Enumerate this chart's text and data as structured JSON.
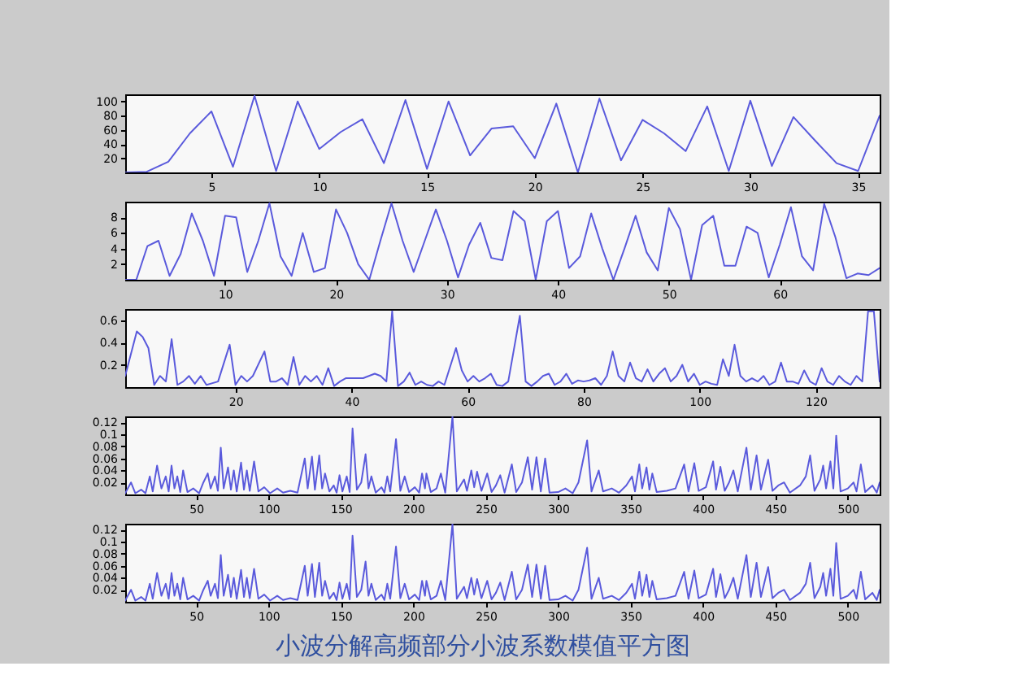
{
  "chart_data": [
    {
      "type": "line",
      "color": "#5a5adc",
      "xlim": [
        1,
        36
      ],
      "ylim": [
        0,
        110
      ],
      "xticks": [
        5,
        10,
        15,
        20,
        25,
        30,
        35
      ],
      "yticks": [
        20,
        40,
        60,
        80,
        100
      ],
      "x": [
        1,
        2,
        3,
        4,
        5,
        6,
        7,
        8,
        9,
        10,
        11,
        12,
        13,
        14,
        15,
        16,
        17,
        18,
        19,
        20,
        21,
        22,
        23,
        24,
        25,
        26,
        27,
        28,
        29,
        30,
        31,
        32,
        33,
        34,
        35,
        36
      ],
      "values": [
        0,
        1,
        15,
        55,
        86,
        8,
        108,
        2,
        100,
        33,
        57,
        75,
        13,
        102,
        5,
        100,
        24,
        62,
        65,
        20,
        97,
        0,
        104,
        17,
        74,
        55,
        30,
        93,
        2,
        101,
        9,
        78,
        45,
        13,
        2,
        80
      ]
    },
    {
      "type": "line",
      "color": "#5a5adc",
      "xlim": [
        1,
        69
      ],
      "ylim": [
        0,
        10
      ],
      "xticks": [
        10,
        20,
        30,
        40,
        50,
        60
      ],
      "yticks": [
        2,
        4,
        6,
        8
      ],
      "x": [
        1,
        2,
        3,
        4,
        5,
        6,
        7,
        8,
        9,
        10,
        11,
        12,
        13,
        14,
        15,
        16,
        17,
        18,
        19,
        20,
        21,
        22,
        23,
        24,
        25,
        26,
        27,
        28,
        29,
        30,
        31,
        32,
        33,
        34,
        35,
        36,
        37,
        38,
        39,
        40,
        41,
        42,
        43,
        44,
        45,
        46,
        47,
        48,
        49,
        50,
        51,
        52,
        53,
        54,
        55,
        56,
        57,
        58,
        59,
        60,
        61,
        62,
        63,
        64,
        65,
        66,
        67,
        68,
        69
      ],
      "values": [
        0,
        0,
        4.3,
        5,
        0.5,
        3.3,
        8.5,
        5,
        0.5,
        8.2,
        8,
        1,
        5,
        9.8,
        3,
        0.5,
        6,
        1,
        1.5,
        9,
        6,
        2,
        0,
        5,
        9.8,
        5,
        1,
        5,
        9,
        5,
        0.3,
        4.5,
        7.3,
        2.8,
        2.5,
        8.8,
        7.5,
        0,
        7.5,
        8.8,
        1.5,
        3,
        8.5,
        4,
        0,
        4,
        8.2,
        3.5,
        1.2,
        9.2,
        6.5,
        0,
        7,
        8.2,
        1.8,
        1.8,
        6.8,
        6,
        0.3,
        4.5,
        9.3,
        3,
        1.2,
        9.7,
        5.5,
        0.2,
        0.8,
        0.6,
        1.5
      ]
    },
    {
      "type": "line",
      "color": "#5a5adc",
      "xlim": [
        1,
        131
      ],
      "ylim": [
        0,
        0.7
      ],
      "xticks": [
        20,
        40,
        60,
        80,
        100,
        120
      ],
      "yticks": [
        0.2,
        0.4,
        0.6
      ],
      "x": [
        1,
        3,
        4,
        5,
        6,
        7,
        8,
        9,
        10,
        11,
        12,
        13,
        14,
        15,
        17,
        19,
        20,
        21,
        22,
        23,
        25,
        26,
        27,
        28,
        29,
        30,
        31,
        32,
        33,
        34,
        35,
        36,
        37,
        38,
        39,
        42,
        43,
        44,
        45,
        46,
        47,
        48,
        49,
        50,
        51,
        52,
        53,
        54,
        55,
        56,
        58,
        59,
        60,
        61,
        62,
        63,
        64,
        65,
        66,
        67,
        69,
        70,
        71,
        72,
        73,
        74,
        75,
        76,
        77,
        78,
        79,
        80,
        81,
        82,
        83,
        84,
        85,
        86,
        87,
        88,
        89,
        90,
        91,
        92,
        93,
        94,
        95,
        96,
        97,
        98,
        99,
        100,
        101,
        102,
        103,
        104,
        105,
        106,
        107,
        108,
        109,
        110,
        111,
        112,
        113,
        114,
        115,
        116,
        117,
        118,
        119,
        120,
        121,
        122,
        123,
        124,
        125,
        126,
        127,
        128,
        129,
        130,
        131
      ],
      "values": [
        0.1,
        0.5,
        0.45,
        0.35,
        0.02,
        0.1,
        0.05,
        0.43,
        0.02,
        0.05,
        0.1,
        0.03,
        0.1,
        0.02,
        0.05,
        0.38,
        0.02,
        0.1,
        0.05,
        0.1,
        0.32,
        0.05,
        0.05,
        0.08,
        0.02,
        0.27,
        0.02,
        0.1,
        0.05,
        0.1,
        0.02,
        0.17,
        0.01,
        0.05,
        0.08,
        0.08,
        0.1,
        0.12,
        0.1,
        0.05,
        0.68,
        0.01,
        0.05,
        0.13,
        0.02,
        0.05,
        0.02,
        0.01,
        0.05,
        0.02,
        0.35,
        0.15,
        0.05,
        0.1,
        0.05,
        0.08,
        0.12,
        0.02,
        0.01,
        0.05,
        0.64,
        0.05,
        0.01,
        0.05,
        0.1,
        0.12,
        0.02,
        0.05,
        0.12,
        0.03,
        0.06,
        0.05,
        0.06,
        0.08,
        0.02,
        0.1,
        0.32,
        0.1,
        0.05,
        0.22,
        0.08,
        0.05,
        0.16,
        0.05,
        0.12,
        0.17,
        0.05,
        0.1,
        0.2,
        0.05,
        0.12,
        0.02,
        0.05,
        0.03,
        0.02,
        0.25,
        0.1,
        0.38,
        0.1,
        0.05,
        0.08,
        0.05,
        0.1,
        0.02,
        0.05,
        0.22,
        0.05,
        0.05,
        0.03,
        0.15,
        0.05,
        0.02,
        0.17,
        0.05,
        0.02,
        0.1,
        0.05,
        0.02,
        0.1,
        0.05,
        0.68,
        0.68,
        0.05
      ]
    },
    {
      "type": "line",
      "color": "#5a5adc",
      "xlim": [
        1,
        522
      ],
      "ylim": [
        0,
        0.13
      ],
      "xticks": [
        50,
        100,
        150,
        200,
        250,
        300,
        350,
        400,
        450,
        500
      ],
      "yticks": [
        0.02,
        0.04,
        0.06,
        0.08,
        0.1,
        0.12
      ],
      "x": [
        1,
        5,
        8,
        12,
        15,
        18,
        20,
        23,
        26,
        29,
        31,
        33,
        35,
        37,
        39,
        41,
        44,
        48,
        52,
        55,
        58,
        60,
        63,
        65,
        67,
        69,
        72,
        74,
        76,
        78,
        81,
        83,
        85,
        87,
        90,
        93,
        97,
        101,
        106,
        110,
        115,
        120,
        125,
        127,
        130,
        132,
        135,
        137,
        139,
        142,
        145,
        147,
        149,
        151,
        154,
        156,
        158,
        161,
        164,
        167,
        169,
        171,
        174,
        178,
        180,
        182,
        184,
        188,
        191,
        194,
        197,
        201,
        204,
        206,
        208,
        209,
        212,
        216,
        219,
        222,
        227,
        230,
        235,
        237,
        240,
        242,
        244,
        247,
        251,
        254,
        257,
        260,
        263,
        268,
        271,
        275,
        279,
        282,
        285,
        288,
        291,
        294,
        300,
        305,
        310,
        314,
        320,
        323,
        328,
        331,
        337,
        342,
        347,
        351,
        353,
        356,
        358,
        361,
        363,
        365,
        368,
        375,
        381,
        387,
        390,
        394,
        397,
        402,
        407,
        409,
        412,
        415,
        418,
        421,
        424,
        430,
        433,
        437,
        440,
        445,
        448,
        452,
        456,
        460,
        467,
        471,
        474,
        477,
        481,
        483,
        485,
        488,
        490,
        492,
        495,
        500,
        504,
        506,
        509,
        512,
        517,
        520,
        522
      ],
      "values": [
        0.002,
        0.02,
        0.002,
        0.008,
        0.002,
        0.03,
        0.005,
        0.048,
        0.01,
        0.03,
        0.005,
        0.048,
        0.01,
        0.03,
        0.004,
        0.04,
        0.004,
        0.01,
        0.002,
        0.02,
        0.035,
        0.01,
        0.03,
        0.006,
        0.078,
        0.01,
        0.045,
        0.008,
        0.04,
        0.005,
        0.053,
        0.008,
        0.04,
        0.006,
        0.055,
        0.005,
        0.012,
        0.002,
        0.01,
        0.003,
        0.006,
        0.003,
        0.06,
        0.01,
        0.063,
        0.008,
        0.065,
        0.01,
        0.035,
        0.005,
        0.015,
        0.003,
        0.032,
        0.005,
        0.03,
        0.004,
        0.11,
        0.008,
        0.02,
        0.067,
        0.01,
        0.03,
        0.003,
        0.012,
        0.003,
        0.03,
        0.005,
        0.092,
        0.006,
        0.03,
        0.004,
        0.012,
        0.003,
        0.035,
        0.01,
        0.035,
        0.004,
        0.01,
        0.035,
        0.003,
        0.13,
        0.005,
        0.025,
        0.006,
        0.04,
        0.012,
        0.038,
        0.006,
        0.035,
        0.004,
        0.015,
        0.032,
        0.003,
        0.05,
        0.004,
        0.02,
        0.062,
        0.008,
        0.062,
        0.005,
        0.06,
        0.003,
        0.004,
        0.01,
        0.002,
        0.02,
        0.09,
        0.005,
        0.04,
        0.005,
        0.01,
        0.003,
        0.015,
        0.03,
        0.005,
        0.05,
        0.01,
        0.045,
        0.008,
        0.035,
        0.004,
        0.006,
        0.01,
        0.05,
        0.005,
        0.052,
        0.006,
        0.012,
        0.055,
        0.008,
        0.046,
        0.006,
        0.02,
        0.04,
        0.005,
        0.078,
        0.008,
        0.065,
        0.008,
        0.058,
        0.006,
        0.015,
        0.02,
        0.003,
        0.015,
        0.03,
        0.065,
        0.006,
        0.025,
        0.048,
        0.01,
        0.055,
        0.01,
        0.098,
        0.005,
        0.01,
        0.02,
        0.005,
        0.05,
        0.004,
        0.015,
        0.003,
        0.02
      ]
    },
    {
      "type": "line",
      "color": "#5a5adc",
      "xlim": [
        1,
        522
      ],
      "ylim": [
        0,
        0.13
      ],
      "xticks": [
        50,
        100,
        150,
        200,
        250,
        300,
        350,
        400,
        450,
        500
      ],
      "yticks": [
        0.02,
        0.04,
        0.06,
        0.08,
        0.1,
        0.12
      ],
      "x": [
        1,
        5,
        8,
        12,
        15,
        18,
        20,
        23,
        26,
        29,
        31,
        33,
        35,
        37,
        39,
        41,
        44,
        48,
        52,
        55,
        58,
        60,
        63,
        65,
        67,
        69,
        72,
        74,
        76,
        78,
        81,
        83,
        85,
        87,
        90,
        93,
        97,
        101,
        106,
        110,
        115,
        120,
        125,
        127,
        130,
        132,
        135,
        137,
        139,
        142,
        145,
        147,
        149,
        151,
        154,
        156,
        158,
        161,
        164,
        167,
        169,
        171,
        174,
        178,
        180,
        182,
        184,
        188,
        191,
        194,
        197,
        201,
        204,
        206,
        208,
        209,
        212,
        216,
        219,
        222,
        227,
        230,
        235,
        237,
        240,
        242,
        244,
        247,
        251,
        254,
        257,
        260,
        263,
        268,
        271,
        275,
        279,
        282,
        285,
        288,
        291,
        294,
        300,
        305,
        310,
        314,
        320,
        323,
        328,
        331,
        337,
        342,
        347,
        351,
        353,
        356,
        358,
        361,
        363,
        365,
        368,
        375,
        381,
        387,
        390,
        394,
        397,
        402,
        407,
        409,
        412,
        415,
        418,
        421,
        424,
        430,
        433,
        437,
        440,
        445,
        448,
        452,
        456,
        460,
        467,
        471,
        474,
        477,
        481,
        483,
        485,
        488,
        490,
        492,
        495,
        500,
        504,
        506,
        509,
        512,
        517,
        520,
        522
      ],
      "values": [
        0.002,
        0.02,
        0.002,
        0.008,
        0.002,
        0.03,
        0.005,
        0.048,
        0.01,
        0.03,
        0.005,
        0.048,
        0.01,
        0.03,
        0.004,
        0.04,
        0.004,
        0.01,
        0.002,
        0.02,
        0.035,
        0.01,
        0.03,
        0.006,
        0.078,
        0.01,
        0.045,
        0.008,
        0.04,
        0.005,
        0.053,
        0.008,
        0.04,
        0.006,
        0.055,
        0.005,
        0.012,
        0.002,
        0.01,
        0.003,
        0.006,
        0.003,
        0.06,
        0.01,
        0.063,
        0.008,
        0.065,
        0.01,
        0.035,
        0.005,
        0.015,
        0.003,
        0.032,
        0.005,
        0.03,
        0.004,
        0.11,
        0.008,
        0.02,
        0.067,
        0.01,
        0.03,
        0.003,
        0.012,
        0.003,
        0.03,
        0.005,
        0.092,
        0.006,
        0.03,
        0.004,
        0.012,
        0.003,
        0.035,
        0.01,
        0.035,
        0.004,
        0.01,
        0.035,
        0.003,
        0.13,
        0.005,
        0.025,
        0.006,
        0.04,
        0.012,
        0.038,
        0.006,
        0.035,
        0.004,
        0.015,
        0.032,
        0.003,
        0.05,
        0.004,
        0.02,
        0.062,
        0.008,
        0.062,
        0.005,
        0.06,
        0.003,
        0.004,
        0.01,
        0.002,
        0.02,
        0.09,
        0.005,
        0.04,
        0.005,
        0.01,
        0.003,
        0.015,
        0.03,
        0.005,
        0.05,
        0.01,
        0.045,
        0.008,
        0.035,
        0.004,
        0.006,
        0.01,
        0.05,
        0.005,
        0.052,
        0.006,
        0.012,
        0.055,
        0.008,
        0.046,
        0.006,
        0.02,
        0.04,
        0.005,
        0.078,
        0.008,
        0.065,
        0.008,
        0.058,
        0.006,
        0.015,
        0.02,
        0.003,
        0.015,
        0.03,
        0.065,
        0.006,
        0.025,
        0.048,
        0.01,
        0.055,
        0.01,
        0.098,
        0.005,
        0.01,
        0.02,
        0.005,
        0.05,
        0.004,
        0.015,
        0.003,
        0.02
      ],
      "annotations": [
        "小波分解高频部分小波系数模值平方图"
      ]
    }
  ]
}
